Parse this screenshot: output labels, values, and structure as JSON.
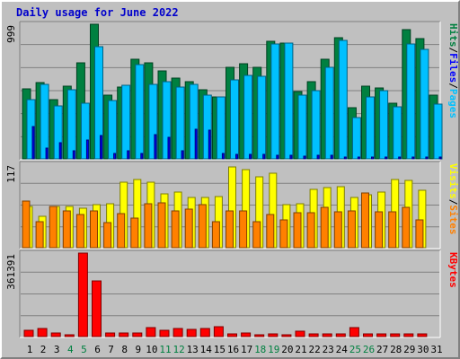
{
  "title": "Daily usage for June 2022",
  "colors": {
    "hits": "#008040",
    "files": "#00c0ff",
    "pages": "#0000ff",
    "visits": "#ffff00",
    "sites": "#ff8000",
    "kbytes": "#ff0000",
    "weekend_day_label": "#008040",
    "weekday_label": "#000000",
    "panel_bg": "#c0c0c0",
    "title": "#0000cc"
  },
  "chart_data": [
    {
      "type": "bar",
      "panel": "hits-files-pages",
      "ytick_max_label": "999",
      "ylim": [
        0,
        999
      ],
      "ylabel_parts": [
        {
          "name": "hits_label",
          "text": "Hits",
          "color": "#008040"
        },
        {
          "name": "slash1",
          "text": "/",
          "color": "#000000"
        },
        {
          "name": "files_label",
          "text": "Files",
          "color": "#0000ff"
        },
        {
          "name": "slash2",
          "text": "/",
          "color": "#000000"
        },
        {
          "name": "pages_label",
          "text": "Pages",
          "color": "#00c0ff"
        }
      ],
      "categories": [
        "1",
        "2",
        "3",
        "4",
        "5",
        "6",
        "7",
        "8",
        "9",
        "10",
        "11",
        "12",
        "13",
        "14",
        "15",
        "16",
        "17",
        "18",
        "19",
        "20",
        "21",
        "22",
        "23",
        "24",
        "25",
        "26",
        "27",
        "28",
        "29",
        "30",
        "31"
      ],
      "series": [
        {
          "name": "Hits",
          "values": [
            520,
            565,
            440,
            540,
            710,
            999,
            470,
            535,
            740,
            710,
            655,
            600,
            575,
            515,
            460,
            680,
            705,
            680,
            870,
            860,
            500,
            570,
            740,
            900,
            380,
            540,
            525,
            410,
            960,
            890,
            470
          ]
        },
        {
          "name": "Files",
          "values": [
            440,
            555,
            390,
            510,
            410,
            830,
            430,
            545,
            700,
            555,
            570,
            535,
            550,
            475,
            460,
            585,
            620,
            610,
            850,
            860,
            470,
            505,
            680,
            880,
            305,
            460,
            505,
            385,
            850,
            810,
            405
          ]
        },
        {
          "name": "Pages",
          "values": [
            240,
            80,
            120,
            60,
            140,
            175,
            40,
            60,
            40,
            180,
            160,
            60,
            220,
            215,
            40,
            35,
            35,
            35,
            25,
            25,
            20,
            25,
            25,
            10,
            10,
            15,
            10,
            10,
            10,
            10,
            10
          ]
        }
      ]
    },
    {
      "type": "bar",
      "panel": "visits-sites",
      "ytick_max_label": "117",
      "ylim": [
        0,
        117
      ],
      "ylabel_parts": [
        {
          "name": "visits_label",
          "text": "Visits",
          "color": "#ffff00"
        },
        {
          "name": "slash3",
          "text": "/",
          "color": "#000000"
        },
        {
          "name": "sites_label",
          "text": "Sites",
          "color": "#ff8000"
        }
      ],
      "categories": [
        "1",
        "2",
        "3",
        "4",
        "5",
        "6",
        "7",
        "8",
        "9",
        "10",
        "11",
        "12",
        "13",
        "14",
        "15",
        "16",
        "17",
        "18",
        "19",
        "20",
        "21",
        "22",
        "23",
        "24",
        "25",
        "26",
        "27",
        "28",
        "29",
        "30",
        "31"
      ],
      "series": [
        {
          "name": "Visits",
          "values": [
            58,
            44,
            58,
            58,
            55,
            60,
            62,
            92,
            96,
            92,
            76,
            78,
            70,
            70,
            72,
            113,
            110,
            100,
            104,
            60,
            62,
            82,
            84,
            86,
            70,
            74,
            78,
            96,
            94,
            80,
            0
          ]
        },
        {
          "name": "Sites",
          "values": [
            66,
            36,
            58,
            52,
            46,
            52,
            35,
            48,
            42,
            62,
            63,
            52,
            54,
            60,
            37,
            52,
            51,
            36,
            46,
            39,
            49,
            49,
            56,
            50,
            51,
            77,
            50,
            50,
            57,
            39,
            0
          ]
        }
      ]
    },
    {
      "type": "bar",
      "panel": "kbytes",
      "ytick_max_label": "361391",
      "ylim": [
        0,
        361391
      ],
      "ylabel_parts": [
        {
          "name": "kbytes_label",
          "text": "KBytes",
          "color": "#ff0000"
        }
      ],
      "categories": [
        "1",
        "2",
        "3",
        "4",
        "5",
        "6",
        "7",
        "8",
        "9",
        "10",
        "11",
        "12",
        "13",
        "14",
        "15",
        "16",
        "17",
        "18",
        "19",
        "20",
        "21",
        "22",
        "23",
        "24",
        "25",
        "26",
        "27",
        "28",
        "29",
        "30",
        "31"
      ],
      "series": [
        {
          "name": "KBytes",
          "values": [
            28000,
            35000,
            14000,
            8000,
            361391,
            242000,
            14000,
            14000,
            14000,
            38000,
            26000,
            35000,
            30000,
            35000,
            42000,
            10000,
            14000,
            8000,
            10000,
            8000,
            24000,
            11000,
            13000,
            12000,
            40000,
            13000,
            13000,
            13000,
            11000,
            11000,
            0
          ]
        }
      ]
    }
  ],
  "weekend_days": [
    4,
    5,
    11,
    12,
    18,
    19,
    25,
    26
  ]
}
